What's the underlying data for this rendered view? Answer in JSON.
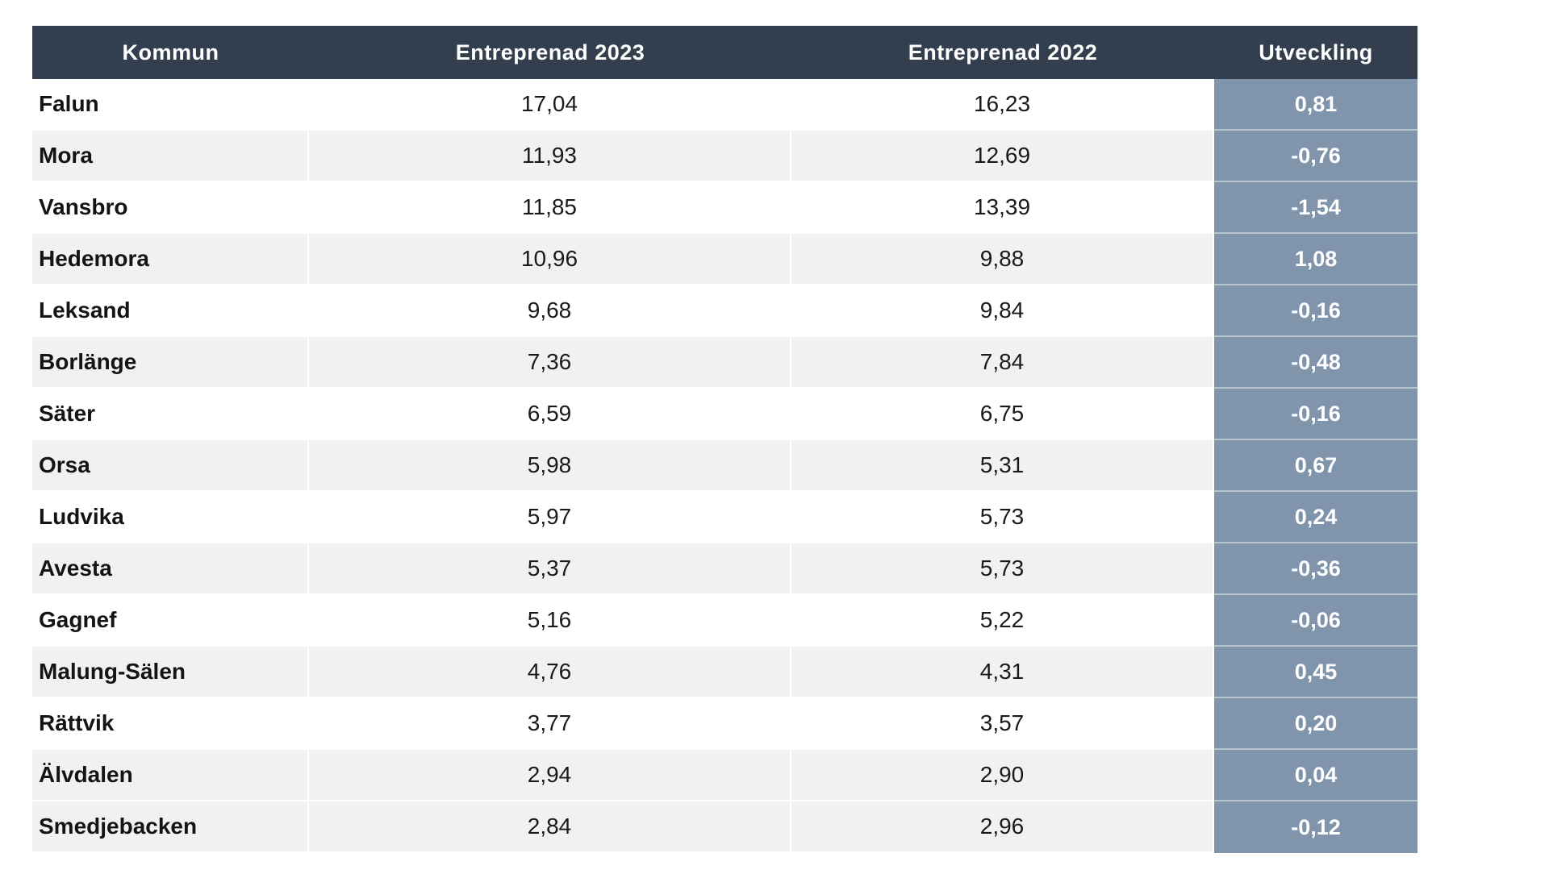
{
  "table": {
    "columns": {
      "kommun": "Kommun",
      "e2023": "Entreprenad 2023",
      "e2022": "Entreprenad 2022",
      "utveckling": "Utveckling"
    },
    "rows": [
      {
        "kommun": "Falun",
        "e2023": "17,04",
        "e2022": "16,23",
        "utveckling": "0,81"
      },
      {
        "kommun": "Mora",
        "e2023": "11,93",
        "e2022": "12,69",
        "utveckling": "-0,76"
      },
      {
        "kommun": "Vansbro",
        "e2023": "11,85",
        "e2022": "13,39",
        "utveckling": "-1,54"
      },
      {
        "kommun": "Hedemora",
        "e2023": "10,96",
        "e2022": "9,88",
        "utveckling": "1,08"
      },
      {
        "kommun": "Leksand",
        "e2023": "9,68",
        "e2022": "9,84",
        "utveckling": "-0,16"
      },
      {
        "kommun": "Borlänge",
        "e2023": "7,36",
        "e2022": "7,84",
        "utveckling": "-0,48"
      },
      {
        "kommun": "Säter",
        "e2023": "6,59",
        "e2022": "6,75",
        "utveckling": "-0,16"
      },
      {
        "kommun": "Orsa",
        "e2023": "5,98",
        "e2022": "5,31",
        "utveckling": "0,67"
      },
      {
        "kommun": "Ludvika",
        "e2023": "5,97",
        "e2022": "5,73",
        "utveckling": "0,24"
      },
      {
        "kommun": "Avesta",
        "e2023": "5,37",
        "e2022": "5,73",
        "utveckling": "-0,36"
      },
      {
        "kommun": "Gagnef",
        "e2023": "5,16",
        "e2022": "5,22",
        "utveckling": "-0,06"
      },
      {
        "kommun": "Malung-Sälen",
        "e2023": "4,76",
        "e2022": "4,31",
        "utveckling": "0,45"
      },
      {
        "kommun": "Rättvik",
        "e2023": "3,77",
        "e2022": "3,57",
        "utveckling": "0,20"
      },
      {
        "kommun": "Älvdalen",
        "e2023": "2,94",
        "e2022": "2,90",
        "utveckling": "0,04"
      },
      {
        "kommun": "Smedjebacken",
        "e2023": "2,84",
        "e2022": "2,96",
        "utveckling": "-0,12"
      }
    ]
  },
  "colors": {
    "header_background": "#333F4F",
    "header_text": "#FFFFFF",
    "utveckling_background": "#8094AB",
    "utveckling_text": "#FFFFFF",
    "band_row_background": "#F1F1F2",
    "body_text": "#1A1A1A"
  },
  "chart_data": {
    "type": "table",
    "title": "",
    "columns": [
      "Kommun",
      "Entreprenad 2023",
      "Entreprenad 2022",
      "Utveckling"
    ],
    "categories": [
      "Falun",
      "Mora",
      "Vansbro",
      "Hedemora",
      "Leksand",
      "Borlänge",
      "Säter",
      "Orsa",
      "Ludvika",
      "Avesta",
      "Gagnef",
      "Malung-Sälen",
      "Rättvik",
      "Älvdalen",
      "Smedjebacken"
    ],
    "series": [
      {
        "name": "Entreprenad 2023",
        "values": [
          17.04,
          11.93,
          11.85,
          10.96,
          9.68,
          7.36,
          6.59,
          5.98,
          5.97,
          5.37,
          5.16,
          4.76,
          3.77,
          2.94,
          2.84
        ]
      },
      {
        "name": "Entreprenad 2022",
        "values": [
          16.23,
          12.69,
          13.39,
          9.88,
          9.84,
          7.84,
          6.75,
          5.31,
          5.73,
          5.73,
          5.22,
          4.31,
          3.57,
          2.9,
          2.96
        ]
      },
      {
        "name": "Utveckling",
        "values": [
          0.81,
          -0.76,
          -1.54,
          1.08,
          -0.16,
          -0.48,
          -0.16,
          0.67,
          0.24,
          -0.36,
          -0.06,
          0.45,
          0.2,
          0.04,
          -0.12
        ]
      }
    ],
    "decimal_separator": ",",
    "legend_position": "none",
    "grid": false
  }
}
